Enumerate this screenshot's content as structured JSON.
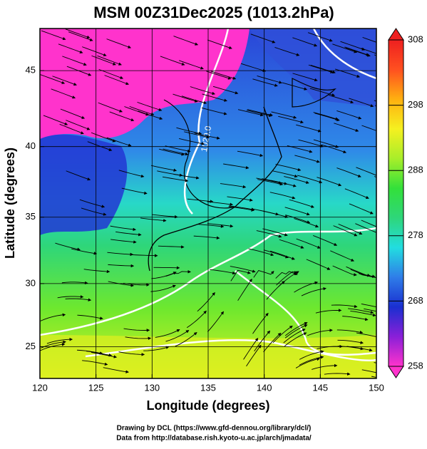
{
  "chart_data": {
    "type": "map",
    "title": "MSM 00Z31Dec2025 (1013.2hPa)",
    "xlabel": "Longitude (degrees)",
    "ylabel": "Latitude  (degrees)",
    "projection": "mercator",
    "xlim": [
      120,
      150
    ],
    "xticks": [
      120,
      125,
      130,
      135,
      140,
      145,
      150
    ],
    "ylim": [
      22.4,
      47.6
    ],
    "yticks": [
      25,
      30,
      35,
      40,
      45
    ],
    "grid": true,
    "colorbar": {
      "lim": [
        258,
        308
      ],
      "ticks": [
        258,
        268,
        278,
        288,
        298,
        308
      ],
      "colormap": [
        "#ff33cc",
        "#8a1fd8",
        "#1a2fd0",
        "#2f7de8",
        "#22dde0",
        "#2ed67a",
        "#33e03a",
        "#a8ee2a",
        "#f5f020",
        "#ffb010",
        "#ff5020",
        "#ee2020"
      ]
    },
    "contour_labels": [
      "1020.0"
    ],
    "footer": [
      "Drawing by DCL (https://www.gfd-dennou.org/library/dcl/)",
      "Data from http://database.rish.kyoto-u.ac.jp/arch/jmadata/"
    ]
  }
}
